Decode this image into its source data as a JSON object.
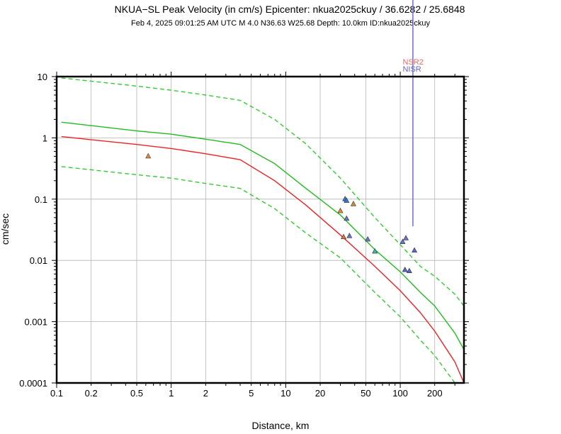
{
  "chart_data": {
    "type": "line",
    "title": "NKUA−SL Peak Velocity (in cm/s) Epicenter: nkua2025ckuy / 36.6282 / 25.6848",
    "subtitle": "Feb  4, 2025 09:01:25 AM UTC   M 4.0    N36.63 W25.68   Depth: 10.0km   ID:nkua2025ckuy",
    "xlabel": "Distance, km",
    "ylabel": "cm/sec",
    "xscale": "log",
    "yscale": "log",
    "xlim": [
      0.1,
      360
    ],
    "ylim": [
      0.0001,
      10
    ],
    "x_ticks": [
      0.1,
      0.2,
      0.5,
      1,
      2,
      5,
      10,
      20,
      50,
      100,
      200
    ],
    "x_tick_labels": [
      "0.1",
      "0.2",
      "0.5",
      "1",
      "2",
      "5",
      "10",
      "20",
      "50",
      "100",
      "200"
    ],
    "y_ticks": [
      0.0001,
      0.001,
      0.01,
      0.1,
      1,
      10
    ],
    "y_tick_labels": [
      "0.0001",
      "0.001",
      "0.01",
      "0.1",
      "1",
      "10"
    ],
    "grid": true,
    "series": [
      {
        "name": "upper-bound",
        "color": "#33cc33",
        "dash": true,
        "points": [
          [
            0.11,
            9.5
          ],
          [
            0.5,
            7.0
          ],
          [
            1,
            6.0
          ],
          [
            2,
            5.0
          ],
          [
            4,
            4.1
          ],
          [
            8,
            2.0
          ],
          [
            15,
            0.8
          ],
          [
            30,
            0.22
          ],
          [
            60,
            0.05
          ],
          [
            100,
            0.018
          ],
          [
            150,
            0.008
          ],
          [
            200,
            0.0055
          ],
          [
            300,
            0.0028
          ],
          [
            360,
            0.0018
          ]
        ]
      },
      {
        "name": "median-fit",
        "color": "#22bb22",
        "dash": false,
        "points": [
          [
            0.11,
            1.8
          ],
          [
            0.5,
            1.3
          ],
          [
            1,
            1.15
          ],
          [
            2,
            0.95
          ],
          [
            4,
            0.78
          ],
          [
            8,
            0.38
          ],
          [
            15,
            0.15
          ],
          [
            30,
            0.055
          ],
          [
            60,
            0.015
          ],
          [
            100,
            0.0065
          ],
          [
            150,
            0.003
          ],
          [
            200,
            0.0018
          ],
          [
            300,
            0.00065
          ],
          [
            360,
            0.00035
          ]
        ]
      },
      {
        "name": "lower-bound",
        "color": "#33cc33",
        "dash": true,
        "points": [
          [
            0.11,
            0.34
          ],
          [
            0.5,
            0.25
          ],
          [
            1,
            0.22
          ],
          [
            2,
            0.18
          ],
          [
            4,
            0.15
          ],
          [
            8,
            0.07
          ],
          [
            15,
            0.028
          ],
          [
            30,
            0.011
          ],
          [
            60,
            0.003
          ],
          [
            100,
            0.0012
          ],
          [
            150,
            0.0005
          ],
          [
            200,
            0.00028
          ],
          [
            300,
            0.0001
          ]
        ]
      },
      {
        "name": "regression",
        "color": "#ee2222",
        "dash": false,
        "points": [
          [
            0.11,
            1.05
          ],
          [
            0.5,
            0.78
          ],
          [
            1,
            0.67
          ],
          [
            2,
            0.55
          ],
          [
            4,
            0.44
          ],
          [
            8,
            0.2
          ],
          [
            15,
            0.08
          ],
          [
            30,
            0.026
          ],
          [
            60,
            0.008
          ],
          [
            100,
            0.0032
          ],
          [
            150,
            0.0014
          ],
          [
            200,
            0.0007
          ],
          [
            300,
            0.00022
          ],
          [
            360,
            0.0001
          ]
        ]
      }
    ],
    "stations": [
      {
        "x": 0.63,
        "y": 0.5,
        "color": "#ee8833"
      },
      {
        "x": 30,
        "y": 0.064,
        "color": "#ee8833"
      },
      {
        "x": 32,
        "y": 0.024,
        "color": "#cc7744"
      },
      {
        "x": 33,
        "y": 0.1,
        "color": "#3377dd"
      },
      {
        "x": 34,
        "y": 0.094,
        "color": "#3377dd"
      },
      {
        "x": 34,
        "y": 0.048,
        "color": "#6677cc"
      },
      {
        "x": 36,
        "y": 0.025,
        "color": "#6677cc"
      },
      {
        "x": 39,
        "y": 0.083,
        "color": "#cc8833"
      },
      {
        "x": 52,
        "y": 0.022,
        "color": "#6677cc"
      },
      {
        "x": 60,
        "y": 0.014,
        "color": "#33bbaa"
      },
      {
        "x": 105,
        "y": 0.02,
        "color": "#6677cc"
      },
      {
        "x": 112,
        "y": 0.023,
        "color": "#6677cc"
      },
      {
        "x": 110,
        "y": 0.007,
        "color": "#5566cc"
      },
      {
        "x": 120,
        "y": 0.0067,
        "color": "#5566cc"
      },
      {
        "x": 133,
        "y": 0.0145,
        "color": "#5566cc"
      }
    ],
    "marker_lines": [
      {
        "label": "NSR2",
        "x": 130,
        "color": "#ee6666",
        "y_bottom": 0.036
      },
      {
        "label": "NISR",
        "x": 130,
        "color": "#6666cc",
        "y_bottom": 0.036
      }
    ]
  }
}
